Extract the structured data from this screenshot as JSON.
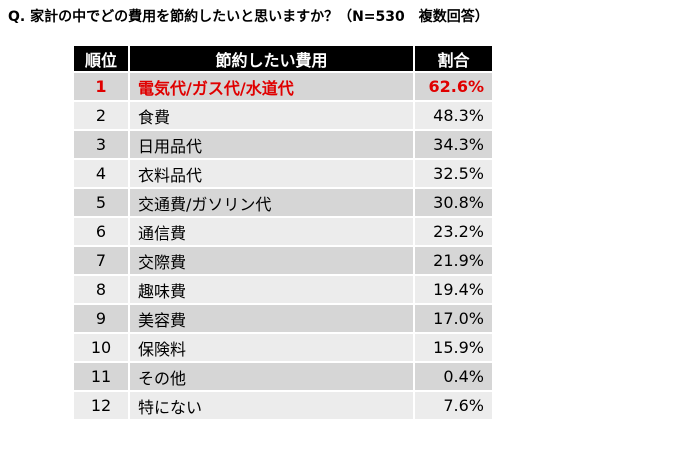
{
  "title": "Q. 家計の中でどの費用を節約したいと思いますか？（N=530　複数回答）",
  "table": {
    "header": [
      "順位",
      "節約したい費用",
      "割合"
    ],
    "rows": [
      [
        "1",
        "電気代/ガス代/水道代",
        "62.6%"
      ],
      [
        "2",
        "食費",
        "48.3%"
      ],
      [
        "3",
        "日用品代",
        "34.3%"
      ],
      [
        "4",
        "衣料品代",
        "32.5%"
      ],
      [
        "5",
        "交通費/ガソリン代",
        "30.8%"
      ],
      [
        "6",
        "通信費",
        "23.2%"
      ],
      [
        "7",
        "交際費",
        "21.9%"
      ],
      [
        "8",
        "趣味費",
        "19.4%"
      ],
      [
        "9",
        "美容費",
        "17.0%"
      ],
      [
        "10",
        "保険料",
        "15.9%"
      ],
      [
        "11",
        "その他",
        "0.4%"
      ],
      [
        "12",
        "特にない",
        "7.6%"
      ]
    ]
  }
}
